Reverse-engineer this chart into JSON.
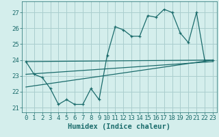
{
  "title": "",
  "xlabel": "Humidex (Indice chaleur)",
  "bg_color": "#d4eeec",
  "grid_color": "#aacece",
  "line_color": "#1a6b6b",
  "xlim": [
    -0.5,
    23.5
  ],
  "ylim": [
    20.7,
    27.7
  ],
  "yticks": [
    21,
    22,
    23,
    24,
    25,
    26,
    27
  ],
  "xticks": [
    0,
    1,
    2,
    3,
    4,
    5,
    6,
    7,
    8,
    9,
    10,
    11,
    12,
    13,
    14,
    15,
    16,
    17,
    18,
    19,
    20,
    21,
    22,
    23
  ],
  "line1_x": [
    0,
    1,
    2,
    3,
    4,
    5,
    6,
    7,
    8,
    9,
    10,
    11,
    12,
    13,
    14,
    15,
    16,
    17,
    18,
    19,
    20,
    21,
    22,
    23
  ],
  "line1_y": [
    23.9,
    23.1,
    22.9,
    22.2,
    21.2,
    21.5,
    21.2,
    21.2,
    22.2,
    21.5,
    24.3,
    26.1,
    25.9,
    25.5,
    25.5,
    26.8,
    26.7,
    27.2,
    27.0,
    25.7,
    25.1,
    27.0,
    24.0,
    24.0
  ],
  "line2_x": [
    0,
    23
  ],
  "line2_y": [
    23.9,
    24.0
  ],
  "line3_x": [
    0,
    23
  ],
  "line3_y": [
    23.1,
    23.9
  ],
  "line4_x": [
    0,
    23
  ],
  "line4_y": [
    22.3,
    24.0
  ],
  "xlabel_fontsize": 7.5,
  "tick_fontsize": 6.5
}
